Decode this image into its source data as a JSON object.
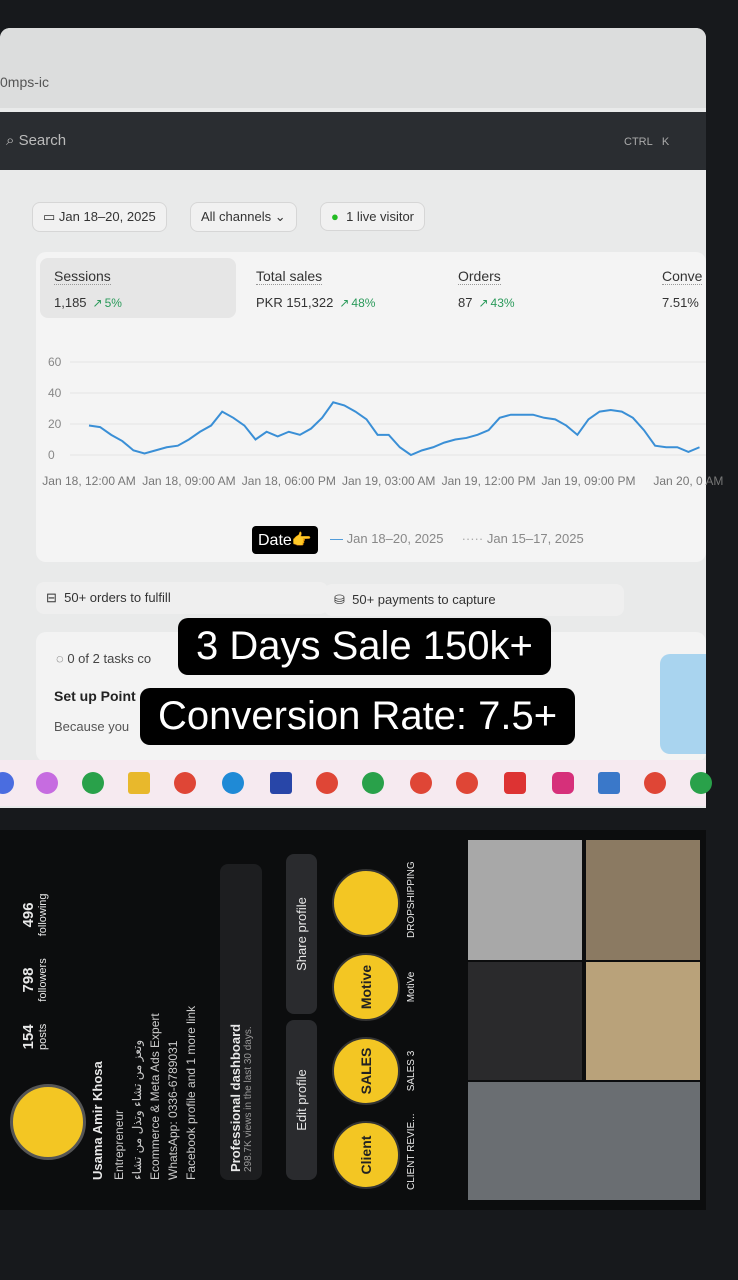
{
  "browser": {
    "url": "0mps-ic",
    "search": "Search",
    "shortcut": [
      "CTRL",
      "K"
    ]
  },
  "filters": {
    "date": "Jan 18–20, 2025",
    "channels": "All channels",
    "visitors": "1 live visitor"
  },
  "metrics": [
    {
      "label": "Sessions",
      "value": "1,185",
      "change": "5%"
    },
    {
      "label": "Total sales",
      "value": "PKR 151,322",
      "change": "48%"
    },
    {
      "label": "Orders",
      "value": "87",
      "change": "43%"
    },
    {
      "label": "Conve",
      "value": "7.51%"
    }
  ],
  "chart": {
    "type": "line",
    "color": "#3a8fd6",
    "ylim": [
      0,
      60
    ],
    "yticks": [
      0,
      20,
      40,
      60
    ],
    "categories": [
      "Jan 18, 12:00 AM",
      null,
      null,
      null,
      null,
      null,
      null,
      null,
      null,
      "Jan 18, 09:00 AM",
      null,
      null,
      null,
      null,
      null,
      null,
      null,
      null,
      "Jan 18, 06:00 PM",
      null,
      null,
      null,
      null,
      null,
      null,
      null,
      null,
      "Jan 19, 03:00 AM",
      null,
      null,
      null,
      null,
      null,
      null,
      null,
      null,
      "Jan 19, 12:00 PM",
      null,
      null,
      null,
      null,
      null,
      null,
      null,
      null,
      "Jan 19, 09:00 PM",
      null,
      null,
      null,
      null,
      null,
      null,
      null,
      null,
      "Jan 20, 0 AM",
      null
    ],
    "values": [
      19,
      18,
      13,
      9,
      3,
      1,
      3,
      5,
      6,
      10,
      15,
      19,
      28,
      24,
      19,
      10,
      15,
      12,
      15,
      13,
      17,
      24,
      34,
      32,
      28,
      23,
      13,
      13,
      5,
      0,
      3,
      5,
      8,
      10,
      11,
      13,
      16,
      24,
      26,
      26,
      26,
      24,
      23,
      19,
      13,
      23,
      28,
      29,
      28,
      24,
      16,
      6,
      5,
      5,
      2,
      5
    ],
    "legend": [
      "Jan 18–20, 2025",
      "Jan 15–17, 2025"
    ]
  },
  "date_hint": "Date👉",
  "tasks": {
    "orders": "50+ orders to fulfill",
    "payments": "50+ payments to capture",
    "progress": "0 of 2 tasks co",
    "setup": "Set up Point",
    "because": "Because you"
  },
  "captions": [
    "3 Days Sale 150k+",
    "Conversion Rate: 7.5+"
  ],
  "profile": {
    "stats": [
      {
        "value": "154",
        "label": "posts"
      },
      {
        "value": "798",
        "label": "followers"
      },
      {
        "value": "496",
        "label": "following"
      }
    ],
    "name": "Usama Amir Khosa",
    "bio": [
      "Entrepreneur",
      "وتعز من تشاء وتذل من تشاء",
      "Ecommerce & Meta Ads Expert",
      "WhatsApp: 0336-6789031",
      "Facebook profile and 1 more link"
    ],
    "dashboard": "Professional dashboard",
    "dashboard_sub": "298.7K views in the last 30 days.",
    "buttons": [
      "Edit profile",
      "Share profile"
    ],
    "highlights": [
      {
        "badge": "Client",
        "label": "CLIENT REVIE..."
      },
      {
        "badge": "SALES",
        "label": "SALES 3"
      },
      {
        "badge": "Motive",
        "label": "MotiVe"
      },
      {
        "badge": "",
        "label": "DROPSHIPPING"
      }
    ]
  }
}
